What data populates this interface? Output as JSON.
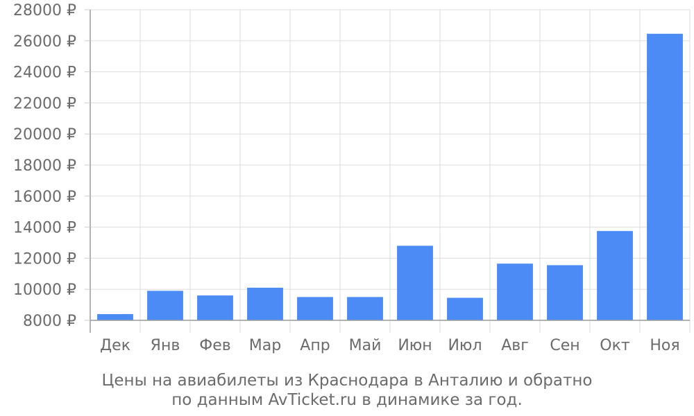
{
  "chart_data": {
    "type": "bar",
    "categories": [
      "Дек",
      "Янв",
      "Фев",
      "Мар",
      "Апр",
      "Май",
      "Июн",
      "Июл",
      "Авг",
      "Сен",
      "Окт",
      "Ноя"
    ],
    "values": [
      8400,
      9900,
      9600,
      10100,
      9500,
      9500,
      12800,
      9450,
      11650,
      11550,
      13750,
      26450
    ],
    "ylim": [
      8000,
      28000
    ],
    "yticks": [
      8000,
      10000,
      12000,
      14000,
      16000,
      18000,
      20000,
      22000,
      24000,
      26000,
      28000
    ],
    "ytick_suffix": " ₽",
    "grid": true,
    "bar_color": "#4b8bf5",
    "caption_lines": [
      "Цены на авиабилеты из Краснодара в Анталию и обратно",
      "по данным AvTicket.ru в динамике за год."
    ]
  }
}
